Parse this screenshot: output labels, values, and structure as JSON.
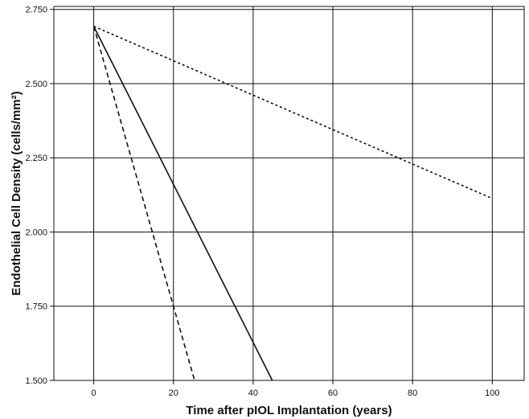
{
  "chart_data": {
    "type": "line",
    "title": "",
    "xlabel": "Time after pIOL Implantation (years)",
    "ylabel": "Endothelial Cell Density (cells/mm²)",
    "xlim": [
      -10,
      108
    ],
    "ylim": [
      1.5,
      2.76
    ],
    "x_ticks": [
      0,
      20,
      40,
      60,
      80,
      100
    ],
    "x_tick_labels": [
      "0",
      "20",
      "40",
      "60",
      "80",
      "100"
    ],
    "y_ticks": [
      1.5,
      1.75,
      2.0,
      2.25,
      2.5,
      2.75
    ],
    "y_tick_labels": [
      "1.500",
      "1.750",
      "2.000",
      "2.250",
      "2.500",
      "2.750"
    ],
    "grid": true,
    "series": [
      {
        "style": "dotted",
        "color": "#111111",
        "x": [
          0,
          100
        ],
        "y": [
          2.693,
          2.113
        ]
      },
      {
        "style": "solid",
        "color": "#111111",
        "x": [
          0,
          44.8
        ],
        "y": [
          2.693,
          1.5
        ]
      },
      {
        "style": "dashed",
        "color": "#111111",
        "x": [
          0,
          25.3
        ],
        "y": [
          2.693,
          1.5
        ]
      }
    ]
  }
}
